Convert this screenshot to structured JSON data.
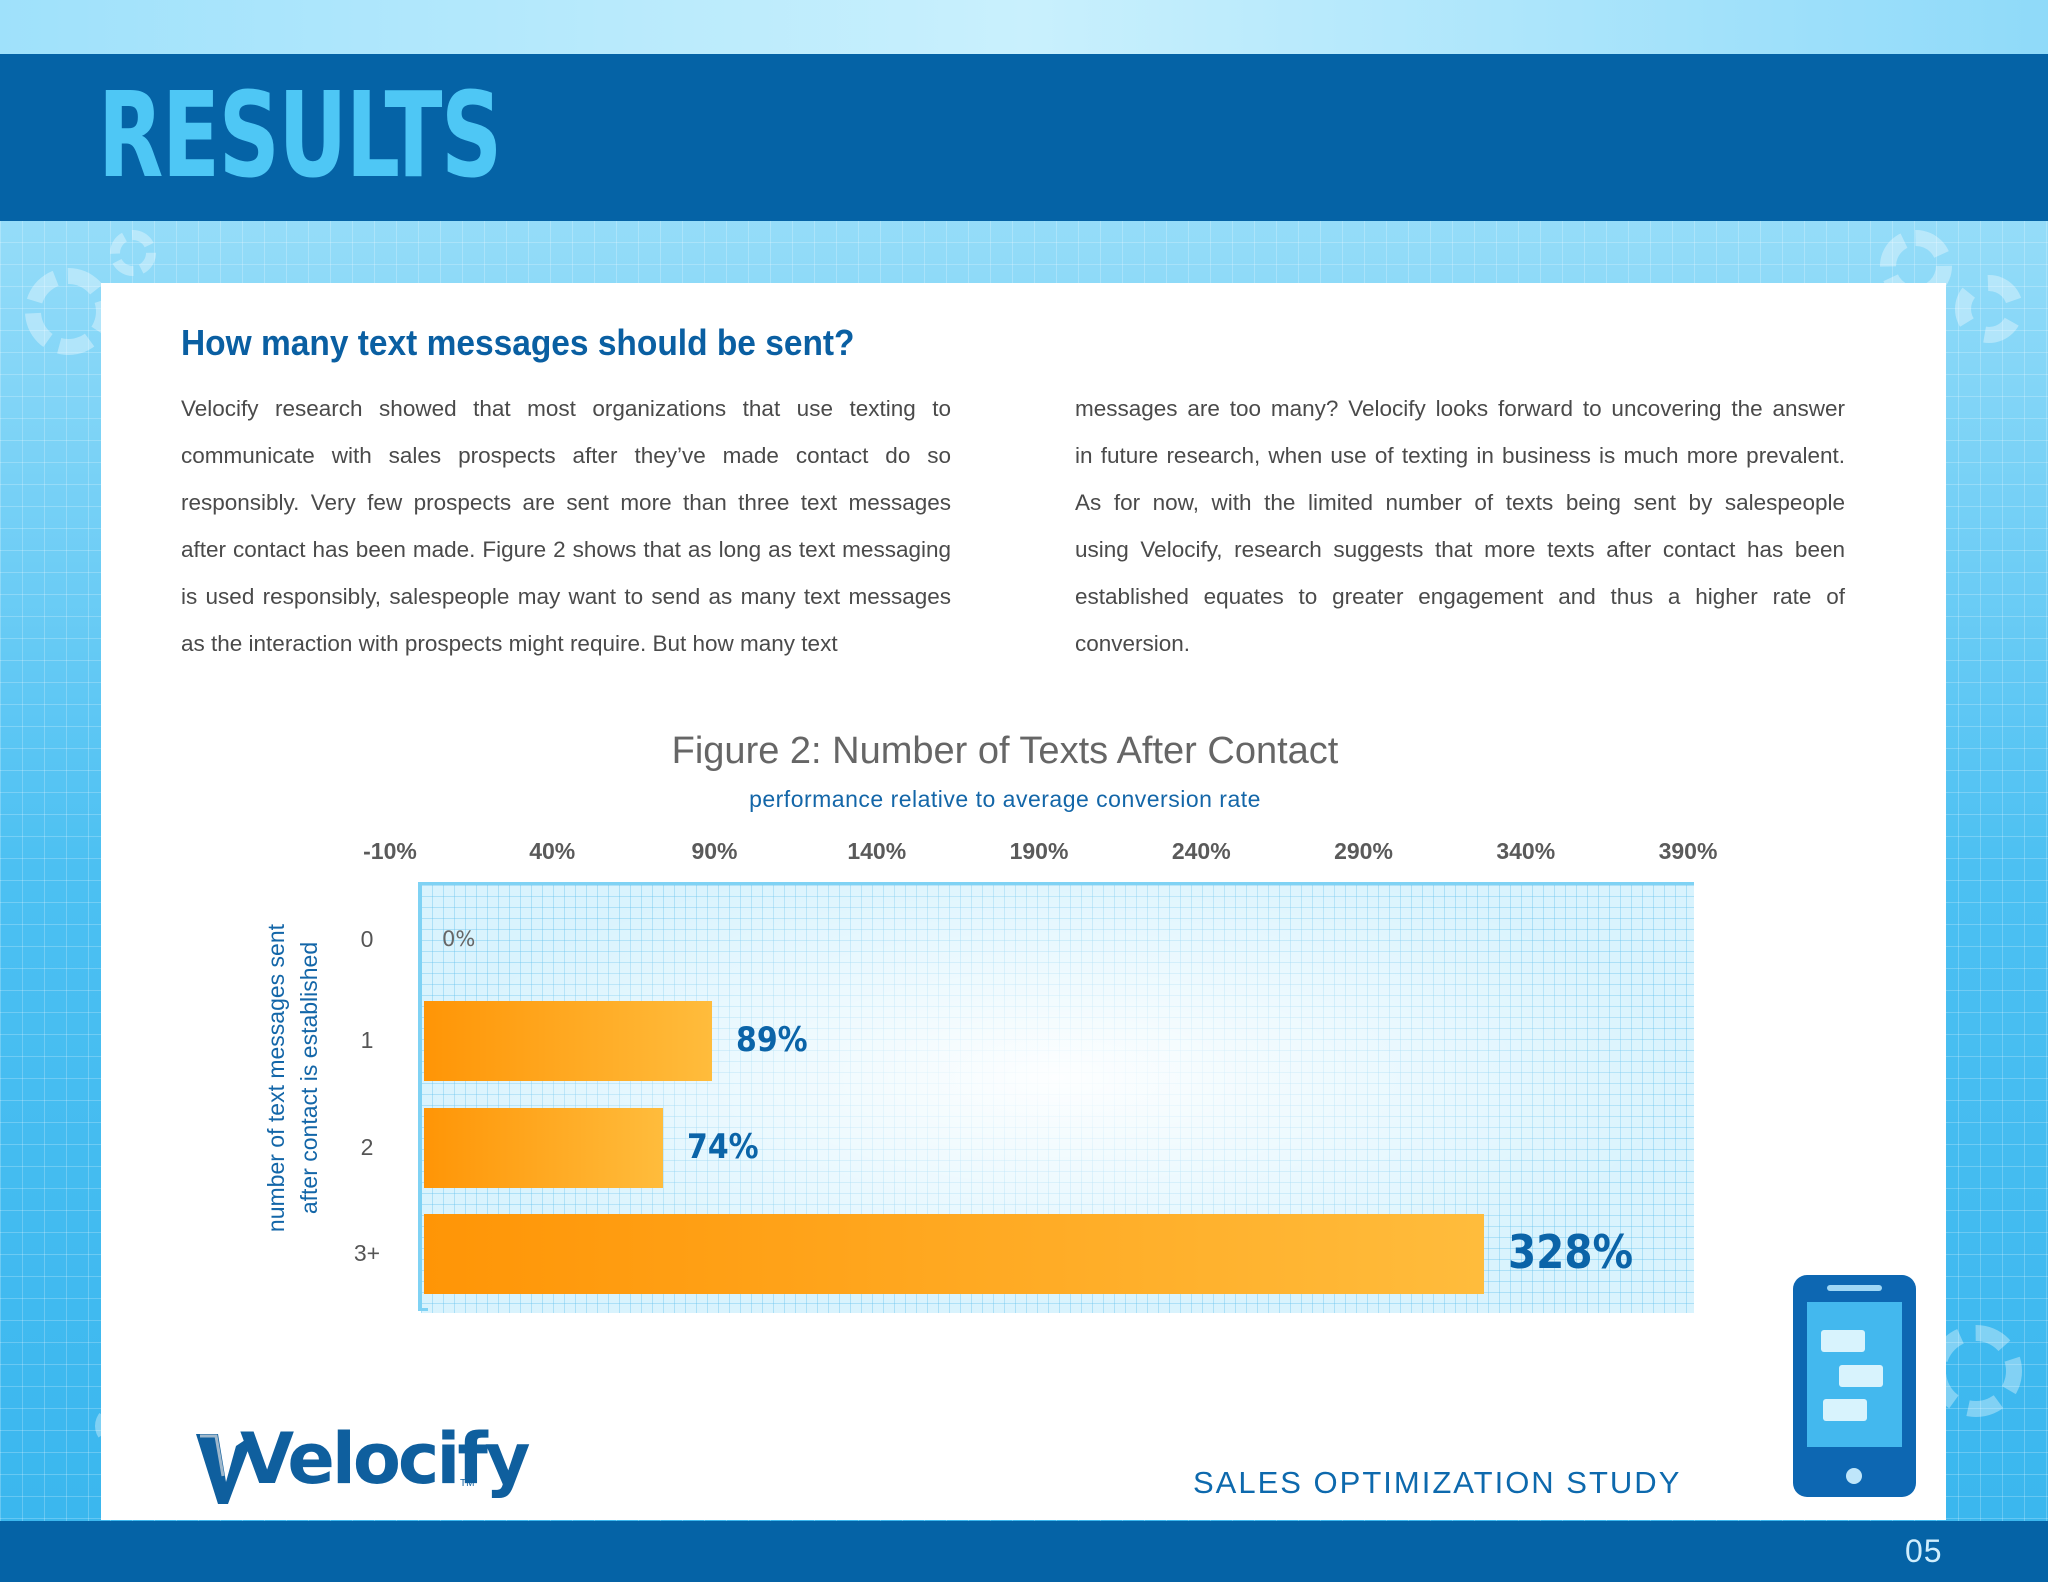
{
  "header": {
    "title": "RESULTS"
  },
  "article": {
    "heading": "How many text messages should be sent?",
    "left_lines": [
      "Velocify research showed that most organizations that use texting to",
      "communicate with sales prospects after they’ve made contact do so",
      "responsibly. Very few prospects are sent more than three text messages",
      "after contact has been made. Figure 2 shows that as long as text messaging",
      "is used responsibly, salespeople may want to send as many text messages",
      "as the interaction with prospects might require. But how many text"
    ],
    "right_lines": [
      "messages are too many? Velocify looks forward to uncovering the answer",
      "in future research, when use of texting in business is much more prevalent.",
      "As for now, with the limited number of texts being sent by salespeople",
      "using Velocify, research suggests that more texts after contact has been",
      "established equates to greater engagement and thus a higher rate of",
      "conversion."
    ]
  },
  "chart_data": {
    "type": "bar",
    "orientation": "horizontal",
    "title": "Figure 2: Number of Texts After Contact",
    "subtitle": "performance relative to average conversion rate",
    "ylabel": "number of text messages sent after contact is established",
    "ylabel_lines": [
      "number of text messages sent",
      "after contact is established"
    ],
    "x_ticks": [
      "-10%",
      "40%",
      "90%",
      "140%",
      "190%",
      "240%",
      "290%",
      "340%",
      "390%"
    ],
    "xlim": [
      -10,
      390
    ],
    "categories": [
      "0",
      "1",
      "2",
      "3+"
    ],
    "values": [
      0,
      89,
      74,
      328
    ],
    "value_labels": [
      "0%",
      "89%",
      "74%",
      "328%"
    ],
    "bar_color": "#ff9a10",
    "label_color": "#0b64a8",
    "grid": true
  },
  "footer": {
    "brand": "Velocify",
    "trademark": "TM",
    "study": "SALES OPTIMIZATION STUDY",
    "page_number": "05"
  },
  "icons": [
    "gear-icon",
    "velocify-logo-icon",
    "phone-chat-icon"
  ],
  "colors": {
    "header_band": "#0563a6",
    "title": "#4ec7f5",
    "heading": "#0a5fa2"
  }
}
